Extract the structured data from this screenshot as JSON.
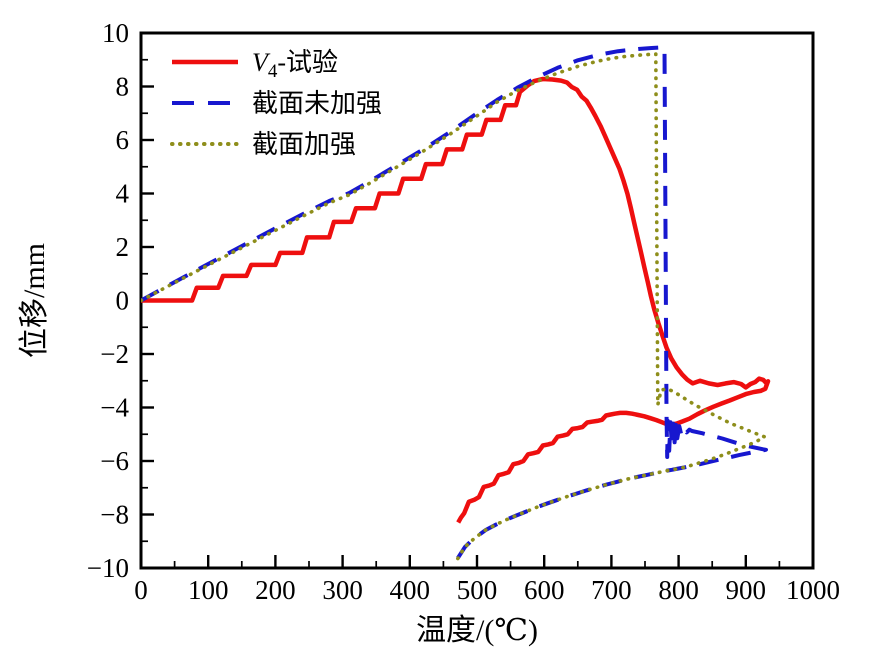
{
  "chart_data": {
    "type": "line",
    "title": "",
    "xlabel": "温度/(℃)",
    "ylabel": "位移/mm",
    "xlim": [
      0,
      1000
    ],
    "ylim": [
      -10,
      10
    ],
    "x_major_tick": 100,
    "x_minor_tick": 50,
    "y_major_tick": 2,
    "y_minor_tick": 1,
    "x_tick_labels": [
      "0",
      "100",
      "200",
      "300",
      "400",
      "500",
      "600",
      "700",
      "800",
      "900",
      "1000"
    ],
    "y_tick_labels": [
      "-10",
      "-8",
      "-6",
      "-4",
      "-2",
      "0",
      "2",
      "4",
      "6",
      "8",
      "10"
    ],
    "grid": false,
    "legend_position": "top-left",
    "frame_color": "#000000",
    "legend": {
      "items": [
        {
          "label": "V4-试验",
          "label_parts": {
            "italic": "V",
            "subscript": "4",
            "rest": "-试验"
          },
          "style": "solid",
          "color": "#ee0f0f"
        },
        {
          "label": "截面未加强",
          "style": "dashed",
          "color": "#1717cf"
        },
        {
          "label": "截面加强",
          "style": "dotted",
          "color": "#8e8e1b"
        }
      ]
    },
    "series": [
      {
        "name": "V4-试验",
        "style": "solid",
        "color": "#ee0f0f",
        "width": 4.5,
        "points": [
          [
            0,
            0
          ],
          [
            76,
            0
          ],
          [
            83,
            0.48
          ],
          [
            115,
            0.48
          ],
          [
            122,
            0.92
          ],
          [
            157,
            0.92
          ],
          [
            164,
            1.33
          ],
          [
            200,
            1.33
          ],
          [
            207,
            1.78
          ],
          [
            240,
            1.78
          ],
          [
            247,
            2.36
          ],
          [
            280,
            2.36
          ],
          [
            287,
            2.94
          ],
          [
            313,
            2.94
          ],
          [
            320,
            3.45
          ],
          [
            348,
            3.45
          ],
          [
            355,
            4.0
          ],
          [
            383,
            4.0
          ],
          [
            390,
            4.55
          ],
          [
            417,
            4.55
          ],
          [
            424,
            5.1
          ],
          [
            448,
            5.1
          ],
          [
            455,
            5.65
          ],
          [
            478,
            5.65
          ],
          [
            485,
            6.2
          ],
          [
            507,
            6.2
          ],
          [
            514,
            6.75
          ],
          [
            535,
            6.75
          ],
          [
            542,
            7.3
          ],
          [
            558,
            7.3
          ],
          [
            564,
            7.8
          ],
          [
            576,
            8.05
          ],
          [
            585,
            8.2
          ],
          [
            598,
            8.28
          ],
          [
            612,
            8.26
          ],
          [
            625,
            8.22
          ],
          [
            634,
            8.15
          ],
          [
            641,
            7.98
          ],
          [
            649,
            7.88
          ],
          [
            656,
            7.62
          ],
          [
            663,
            7.47
          ],
          [
            669,
            7.22
          ],
          [
            676,
            6.9
          ],
          [
            684,
            6.52
          ],
          [
            691,
            6.12
          ],
          [
            698,
            5.72
          ],
          [
            705,
            5.32
          ],
          [
            712,
            4.92
          ],
          [
            718,
            4.48
          ],
          [
            724,
            3.98
          ],
          [
            729,
            3.45
          ],
          [
            734,
            2.9
          ],
          [
            739,
            2.35
          ],
          [
            744,
            1.8
          ],
          [
            749,
            1.25
          ],
          [
            754,
            0.7
          ],
          [
            759,
            0.15
          ],
          [
            764,
            -0.35
          ],
          [
            770,
            -0.85
          ],
          [
            776,
            -1.32
          ],
          [
            782,
            -1.76
          ],
          [
            789,
            -2.16
          ],
          [
            797,
            -2.5
          ],
          [
            805,
            -2.76
          ],
          [
            813,
            -2.96
          ],
          [
            821,
            -3.1
          ],
          [
            832,
            -3.0
          ],
          [
            845,
            -3.1
          ],
          [
            858,
            -3.16
          ],
          [
            870,
            -3.1
          ],
          [
            882,
            -3.05
          ],
          [
            893,
            -3.12
          ],
          [
            900,
            -3.25
          ],
          [
            907,
            -3.12
          ],
          [
            914,
            -3.05
          ],
          [
            920,
            -2.92
          ],
          [
            926,
            -2.97
          ],
          [
            931,
            -3.1
          ],
          [
            933,
            -3.02
          ],
          [
            929,
            -3.3
          ],
          [
            922,
            -3.38
          ],
          [
            912,
            -3.42
          ],
          [
            900,
            -3.5
          ],
          [
            888,
            -3.62
          ],
          [
            876,
            -3.74
          ],
          [
            864,
            -3.85
          ],
          [
            852,
            -3.97
          ],
          [
            840,
            -4.1
          ],
          [
            828,
            -4.25
          ],
          [
            816,
            -4.42
          ],
          [
            806,
            -4.52
          ],
          [
            797,
            -4.6
          ],
          [
            789,
            -4.64
          ],
          [
            782,
            -4.62
          ],
          [
            775,
            -4.55
          ],
          [
            767,
            -4.47
          ],
          [
            758,
            -4.4
          ],
          [
            749,
            -4.33
          ],
          [
            740,
            -4.28
          ],
          [
            731,
            -4.23
          ],
          [
            722,
            -4.2
          ],
          [
            713,
            -4.2
          ],
          [
            705,
            -4.23
          ],
          [
            699,
            -4.26
          ],
          [
            692,
            -4.3
          ],
          [
            686,
            -4.46
          ],
          [
            679,
            -4.5
          ],
          [
            671,
            -4.53
          ],
          [
            664,
            -4.56
          ],
          [
            657,
            -4.73
          ],
          [
            650,
            -4.77
          ],
          [
            642,
            -4.8
          ],
          [
            635,
            -5.0
          ],
          [
            628,
            -5.05
          ],
          [
            620,
            -5.09
          ],
          [
            613,
            -5.33
          ],
          [
            606,
            -5.38
          ],
          [
            598,
            -5.42
          ],
          [
            591,
            -5.66
          ],
          [
            584,
            -5.71
          ],
          [
            576,
            -5.75
          ],
          [
            569,
            -6.0
          ],
          [
            562,
            -6.07
          ],
          [
            554,
            -6.12
          ],
          [
            547,
            -6.42
          ],
          [
            540,
            -6.48
          ],
          [
            532,
            -6.53
          ],
          [
            525,
            -6.85
          ],
          [
            518,
            -6.92
          ],
          [
            510,
            -6.97
          ],
          [
            503,
            -7.35
          ],
          [
            496,
            -7.45
          ],
          [
            488,
            -7.52
          ],
          [
            481,
            -7.95
          ],
          [
            476,
            -8.12
          ],
          [
            472,
            -8.3
          ]
        ]
      },
      {
        "name": "截面未加强",
        "style": "dashed",
        "color": "#1717cf",
        "width": 4,
        "points": [
          [
            0,
            0
          ],
          [
            40,
            0.55
          ],
          [
            80,
            1.1
          ],
          [
            120,
            1.63
          ],
          [
            160,
            2.17
          ],
          [
            200,
            2.7
          ],
          [
            240,
            3.22
          ],
          [
            280,
            3.72
          ],
          [
            310,
            4.02
          ],
          [
            340,
            4.45
          ],
          [
            380,
            5.05
          ],
          [
            420,
            5.65
          ],
          [
            460,
            6.3
          ],
          [
            500,
            7.0
          ],
          [
            530,
            7.5
          ],
          [
            560,
            7.95
          ],
          [
            590,
            8.35
          ],
          [
            620,
            8.7
          ],
          [
            650,
            8.98
          ],
          [
            680,
            9.18
          ],
          [
            710,
            9.32
          ],
          [
            740,
            9.4
          ],
          [
            760,
            9.44
          ],
          [
            779,
            9.47
          ],
          [
            782,
            -4.2
          ],
          [
            783,
            -5.85
          ],
          [
            784,
            -4.5
          ],
          [
            786,
            -5.62
          ],
          [
            788,
            -4.55
          ],
          [
            790,
            -5.45
          ],
          [
            792,
            -4.6
          ],
          [
            794,
            -5.3
          ],
          [
            796,
            -4.65
          ],
          [
            798,
            -5.15
          ],
          [
            801,
            -4.7
          ],
          [
            804,
            -5.02
          ],
          [
            808,
            -4.78
          ],
          [
            812,
            -4.93
          ],
          [
            816,
            -4.83
          ],
          [
            820,
            -4.88
          ],
          [
            835,
            -4.96
          ],
          [
            850,
            -5.06
          ],
          [
            865,
            -5.16
          ],
          [
            880,
            -5.28
          ],
          [
            895,
            -5.39
          ],
          [
            910,
            -5.48
          ],
          [
            925,
            -5.56
          ],
          [
            930,
            -5.58
          ],
          [
            918,
            -5.63
          ],
          [
            905,
            -5.7
          ],
          [
            890,
            -5.78
          ],
          [
            875,
            -5.87
          ],
          [
            860,
            -5.95
          ],
          [
            845,
            -6.04
          ],
          [
            830,
            -6.13
          ],
          [
            815,
            -6.21
          ],
          [
            800,
            -6.28
          ],
          [
            790,
            -6.33
          ],
          [
            783,
            -6.36
          ],
          [
            768,
            -6.44
          ],
          [
            753,
            -6.52
          ],
          [
            738,
            -6.6
          ],
          [
            723,
            -6.68
          ],
          [
            708,
            -6.78
          ],
          [
            693,
            -6.88
          ],
          [
            678,
            -6.99
          ],
          [
            663,
            -7.1
          ],
          [
            648,
            -7.22
          ],
          [
            633,
            -7.34
          ],
          [
            618,
            -7.47
          ],
          [
            603,
            -7.6
          ],
          [
            588,
            -7.74
          ],
          [
            573,
            -7.89
          ],
          [
            558,
            -8.04
          ],
          [
            543,
            -8.2
          ],
          [
            528,
            -8.38
          ],
          [
            513,
            -8.58
          ],
          [
            500,
            -8.82
          ],
          [
            490,
            -9.02
          ],
          [
            482,
            -9.22
          ],
          [
            476,
            -9.45
          ],
          [
            471,
            -9.65
          ],
          [
            468,
            -9.78
          ]
        ]
      },
      {
        "name": "截面加强",
        "style": "dotted",
        "color": "#8e8e1b",
        "width": 3.6,
        "points": [
          [
            0,
            0
          ],
          [
            40,
            0.53
          ],
          [
            80,
            1.06
          ],
          [
            120,
            1.58
          ],
          [
            160,
            2.1
          ],
          [
            200,
            2.62
          ],
          [
            240,
            3.14
          ],
          [
            280,
            3.65
          ],
          [
            310,
            3.95
          ],
          [
            340,
            4.38
          ],
          [
            380,
            4.98
          ],
          [
            420,
            5.58
          ],
          [
            460,
            6.22
          ],
          [
            500,
            6.9
          ],
          [
            530,
            7.42
          ],
          [
            560,
            7.85
          ],
          [
            590,
            8.2
          ],
          [
            620,
            8.5
          ],
          [
            650,
            8.75
          ],
          [
            680,
            8.95
          ],
          [
            700,
            9.05
          ],
          [
            720,
            9.12
          ],
          [
            740,
            9.17
          ],
          [
            757,
            9.2
          ],
          [
            766,
            9.22
          ],
          [
            769,
            -3.9
          ],
          [
            774,
            -3.35
          ],
          [
            783,
            -3.3
          ],
          [
            792,
            -3.4
          ],
          [
            802,
            -3.55
          ],
          [
            815,
            -3.76
          ],
          [
            828,
            -3.95
          ],
          [
            842,
            -4.14
          ],
          [
            856,
            -4.32
          ],
          [
            870,
            -4.5
          ],
          [
            884,
            -4.66
          ],
          [
            898,
            -4.8
          ],
          [
            912,
            -4.95
          ],
          [
            922,
            -5.03
          ],
          [
            928,
            -5.1
          ],
          [
            915,
            -5.28
          ],
          [
            902,
            -5.42
          ],
          [
            888,
            -5.56
          ],
          [
            874,
            -5.7
          ],
          [
            860,
            -5.83
          ],
          [
            846,
            -5.95
          ],
          [
            832,
            -6.06
          ],
          [
            818,
            -6.17
          ],
          [
            804,
            -6.26
          ],
          [
            792,
            -6.32
          ],
          [
            783,
            -6.36
          ],
          [
            768,
            -6.44
          ],
          [
            753,
            -6.52
          ],
          [
            738,
            -6.6
          ],
          [
            723,
            -6.68
          ],
          [
            708,
            -6.78
          ],
          [
            693,
            -6.88
          ],
          [
            678,
            -6.99
          ],
          [
            663,
            -7.1
          ],
          [
            648,
            -7.22
          ],
          [
            633,
            -7.34
          ],
          [
            618,
            -7.47
          ],
          [
            603,
            -7.6
          ],
          [
            588,
            -7.74
          ],
          [
            573,
            -7.89
          ],
          [
            558,
            -8.04
          ],
          [
            543,
            -8.2
          ],
          [
            528,
            -8.38
          ],
          [
            513,
            -8.58
          ],
          [
            500,
            -8.82
          ],
          [
            490,
            -9.02
          ],
          [
            482,
            -9.22
          ],
          [
            476,
            -9.45
          ],
          [
            472,
            -9.62
          ],
          [
            470,
            -9.72
          ]
        ]
      }
    ]
  }
}
